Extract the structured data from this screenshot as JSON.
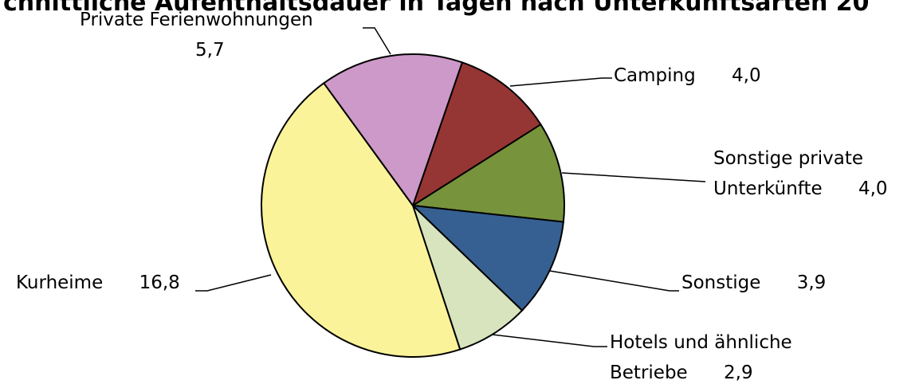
{
  "chart_data": {
    "type": "pie",
    "title": "chnittliche Aufenthaltsdauer in Tagen nach Unterkunftsarten 20",
    "categories": [
      "Camping",
      "Sonstige private Unterkünfte",
      "Sonstige",
      "Hotels und ähnliche Betriebe",
      "Kurheime",
      "Private Ferienwohnungen"
    ],
    "values": [
      4.0,
      4.0,
      3.9,
      2.9,
      16.8,
      5.7
    ],
    "value_labels": [
      "4,0",
      "4,0",
      "3,9",
      "2,9",
      "16,8",
      "5,7"
    ],
    "colors": [
      "#963634",
      "#77933c",
      "#366092",
      "#d7e4bd",
      "#faf39a",
      "#cc99c9"
    ]
  }
}
